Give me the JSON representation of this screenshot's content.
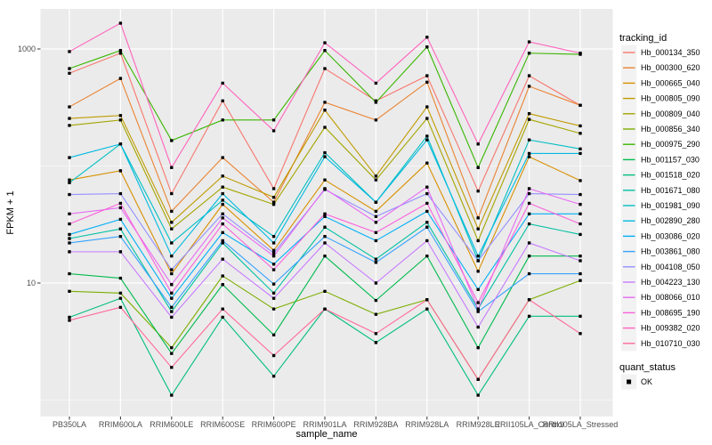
{
  "chart_data": {
    "type": "line",
    "title": "",
    "xlabel": "sample_name",
    "ylabel": "FPKM + 1",
    "y_scale": "log10",
    "y_ticks": [
      1000,
      10
    ],
    "y_tick_labels": [
      "1000",
      "10"
    ],
    "y_minor_gridlines": [
      100,
      1
    ],
    "ylim": [
      0.75,
      2200
    ],
    "grid": true,
    "legend": {
      "title": "tracking_id",
      "position": "right"
    },
    "quant_status": {
      "title": "quant_status",
      "items": [
        {
          "label": "OK",
          "shape": "filled-square",
          "color": "#000000"
        }
      ]
    },
    "colors": {
      "panel_bg": "#EBEBEB",
      "grid": "#FFFFFF",
      "legend_key_bg": "#F2F2F2",
      "tick_label": "#4D4D4D",
      "tick_mark": "#333333",
      "point": "#000000"
    },
    "categories": [
      "PB350LA",
      "RRIM600LA",
      "RRIM600LE",
      "RRIM600SE",
      "RRIM600PE",
      "RRIM901LA",
      "RRIM928BA",
      "RRIM928LA",
      "RRIM928LE",
      "RRII105LA_Control",
      "RRII105LA_Stressed"
    ],
    "series": [
      {
        "name": "Hb_000134_350",
        "color": "#F8766D",
        "values": [
          620,
          920,
          58,
          360,
          64,
          680,
          360,
          590,
          61,
          590,
          330
        ]
      },
      {
        "name": "Hb_000300_620",
        "color": "#EA8331",
        "values": [
          320,
          560,
          41,
          118,
          49,
          350,
          247,
          520,
          36,
          480,
          330
        ]
      },
      {
        "name": "Hb_000665_040",
        "color": "#D89000",
        "values": [
          76,
          91,
          12,
          47,
          19,
          76,
          41,
          106,
          12.6,
          120,
          75
        ]
      },
      {
        "name": "Hb_000805_090",
        "color": "#C09B00",
        "values": [
          255,
          270,
          33,
          82,
          54,
          300,
          82,
          320,
          29,
          280,
          220
        ]
      },
      {
        "name": "Hb_000809_040",
        "color": "#A3A500",
        "values": [
          222,
          247,
          29,
          66,
          47,
          214,
          76,
          255,
          23,
          250,
          190
        ]
      },
      {
        "name": "Hb_000856_340",
        "color": "#7CAE00",
        "values": [
          8.5,
          8.2,
          2.8,
          11.5,
          6,
          8.5,
          5.4,
          7.2,
          1.5,
          7.2,
          10.5
        ]
      },
      {
        "name": "Hb_000975_290",
        "color": "#39B600",
        "values": [
          680,
          970,
          165,
          247,
          247,
          970,
          350,
          1040,
          97,
          920,
          900
        ]
      },
      {
        "name": "Hb_001157_030",
        "color": "#00BB4E",
        "values": [
          12,
          11,
          2.5,
          9.7,
          3.6,
          17,
          7.1,
          17,
          2.8,
          17,
          17
        ]
      },
      {
        "name": "Hb_001518_020",
        "color": "#00BF7D",
        "values": [
          5.1,
          7.4,
          1.1,
          5.1,
          1.6,
          6,
          3.1,
          6,
          1.1,
          5.2,
          5.2
        ]
      },
      {
        "name": "Hb_001671_080",
        "color": "#00C1A3",
        "values": [
          24,
          29,
          5.7,
          22,
          8.2,
          30,
          16,
          33,
          6,
          32,
          26
        ]
      },
      {
        "name": "Hb_001981_090",
        "color": "#00BFC4",
        "values": [
          72,
          154,
          22,
          51,
          25,
          130,
          49,
          180,
          15.5,
          167,
          140
        ]
      },
      {
        "name": "Hb_002890_280",
        "color": "#00BAE0",
        "values": [
          118,
          154,
          17,
          58,
          22,
          120,
          49,
          167,
          17,
          128,
          128
        ]
      },
      {
        "name": "Hb_003086_020",
        "color": "#00B0F6",
        "values": [
          26,
          35,
          7.4,
          27,
          14.5,
          37,
          23,
          41,
          8.8,
          39,
          39
        ]
      },
      {
        "name": "Hb_003861_080",
        "color": "#35A2FF",
        "values": [
          22,
          25,
          6.2,
          23,
          9.8,
          25,
          15,
          30,
          5.7,
          12,
          12
        ]
      },
      {
        "name": "Hb_004108_050",
        "color": "#9590FF",
        "values": [
          57,
          58,
          13,
          39,
          18,
          63,
          37,
          58,
          15.5,
          58,
          57
        ]
      },
      {
        "name": "Hb_004223_130",
        "color": "#C77CFF",
        "values": [
          18.5,
          18.5,
          5.1,
          16,
          7.4,
          22,
          10,
          23,
          4.2,
          22,
          15.5
        ]
      },
      {
        "name": "Hb_008066_010",
        "color": "#E76BF3",
        "values": [
          39,
          44,
          9.7,
          36,
          17,
          64,
          33,
          66,
          6,
          64,
          47
        ]
      },
      {
        "name": "Hb_008695_190",
        "color": "#FA62DB",
        "values": [
          32,
          48,
          8.2,
          32,
          13,
          39,
          27,
          48,
          6.8,
          48,
          32
        ]
      },
      {
        "name": "Hb_009382_020",
        "color": "#FF62BC",
        "values": [
          950,
          1660,
          97,
          510,
          200,
          1130,
          510,
          1260,
          154,
          1150,
          920
        ]
      },
      {
        "name": "Hb_010710_030",
        "color": "#FF6A98",
        "values": [
          4.8,
          6.2,
          1.9,
          6,
          2.4,
          6,
          3.7,
          7.2,
          1.5,
          7.2,
          3.7
        ]
      }
    ]
  }
}
